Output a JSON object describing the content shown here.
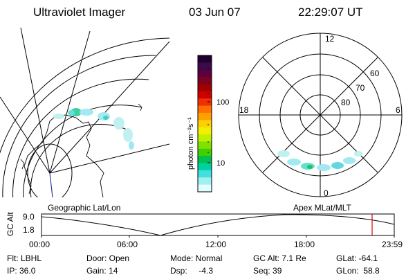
{
  "header": {
    "title": "Ultraviolet Imager",
    "date": "03 Jun 07",
    "time": "22:29:07 UT"
  },
  "colorbar": {
    "label": "photon cm⁻²s⁻¹",
    "ticks": [
      "100",
      "10"
    ],
    "colors": [
      "#200030",
      "#3a0a4a",
      "#5a0040",
      "#800020",
      "#a00000",
      "#d00000",
      "#f03000",
      "#ff7000",
      "#ffa000",
      "#ffd000",
      "#f0f000",
      "#c0f000",
      "#80e000",
      "#40d000",
      "#00c050",
      "#00d0a0",
      "#40e0e0",
      "#a0f0f0",
      "#e0ffff"
    ]
  },
  "left_panel": {
    "label": "Geographic Lat/Lon"
  },
  "right_panel": {
    "label": "Apex  MLat/MLT",
    "mlt_labels": {
      "top": "12",
      "left": "18",
      "right": "6",
      "bottom": "0"
    },
    "lat_labels": [
      "60",
      "70",
      "80"
    ]
  },
  "timeline": {
    "axis_label": "GC Alt",
    "y_ticks": [
      "9.0",
      "1.8"
    ],
    "x_ticks": [
      "00:00",
      "06:00",
      "12:00",
      "18:00",
      "23:59"
    ]
  },
  "info": {
    "filter": "Flt: LBHL",
    "ip": "IP: 36.0",
    "door": "Door: Open",
    "gain": "Gain: 14",
    "mode": "Mode: Normal",
    "dsp": "Dsp:     -4.3",
    "gc_alt": "GC Alt: 7.1 Re",
    "seq": "Seq: 39",
    "glat": "GLat: -64.1",
    "glon": "GLon:  58.8"
  }
}
